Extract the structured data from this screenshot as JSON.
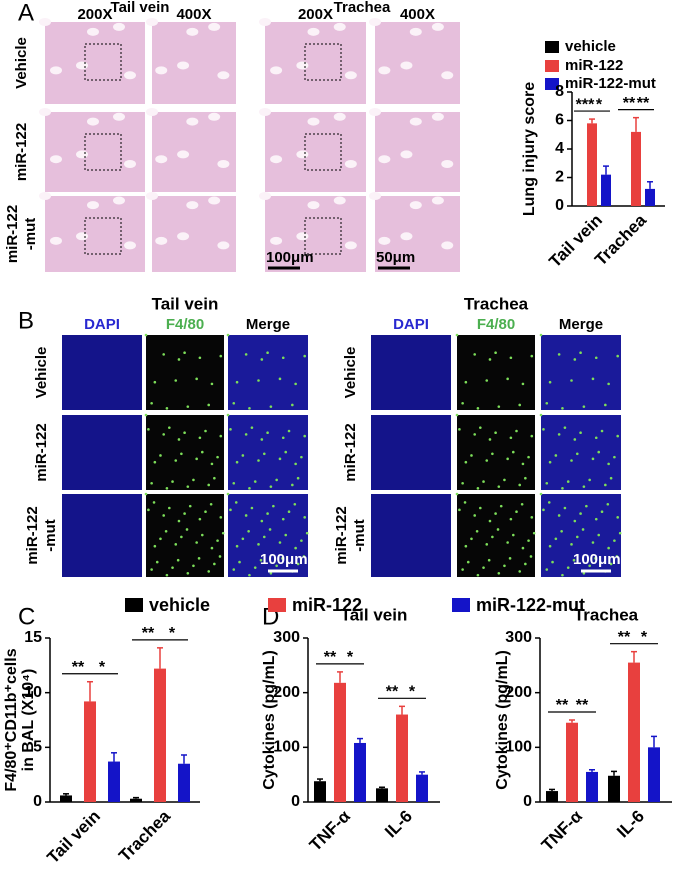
{
  "panel_labels": [
    "A",
    "B",
    "C",
    "D"
  ],
  "histology": {
    "groups": [
      "Tail vein",
      "Trachea"
    ],
    "magnifications": [
      "200X",
      "400X",
      "200X",
      "400X"
    ],
    "rows": [
      [
        "Vehicle"
      ],
      [
        "miR-122"
      ],
      [
        "miR-122",
        "-mut"
      ]
    ],
    "scale_bars": [
      "100μm",
      "50μm"
    ]
  },
  "fluorescence": {
    "groups": [
      "Tail vein",
      "Trachea"
    ],
    "channels": [
      "DAPI",
      "F4/80",
      "Merge",
      "DAPI",
      "F4/80",
      "Merge"
    ],
    "rows": [
      [
        [
          "Vehicle"
        ],
        [
          "miR-122"
        ],
        [
          "miR-122",
          "-mut"
        ]
      ],
      [
        [
          "Vehicle"
        ],
        [
          "miR-122"
        ],
        [
          "miR-122",
          "-mut"
        ]
      ]
    ],
    "scale_bars": [
      "100μm",
      "100μm"
    ]
  },
  "chart_data": [
    {
      "type": "bar",
      "y_label": [
        "Lung injury score"
      ],
      "categories": [
        "Tail vein",
        "Trachea"
      ],
      "series": [
        {
          "name": "vehicle",
          "color": "#000000",
          "values": [
            0,
            0
          ],
          "errors": [
            0,
            0
          ]
        },
        {
          "name": "miR-122",
          "color": "#e8403e",
          "values": [
            5.8,
            5.2
          ],
          "errors": [
            0.3,
            1.0
          ]
        },
        {
          "name": "miR-122-mut",
          "color": "#1414c8",
          "values": [
            2.2,
            1.2
          ],
          "errors": [
            0.6,
            0.5
          ]
        }
      ],
      "significance": [
        [
          "***",
          "*"
        ],
        [
          "**",
          "**"
        ]
      ],
      "ylim": [
        0,
        8
      ],
      "yticks": [
        0,
        2,
        4,
        6,
        8
      ]
    },
    {
      "type": "bar",
      "y_label": [
        "F4/80⁺CD11b⁺cells",
        "in BAL (X10⁴)"
      ],
      "categories": [
        "Tail vein",
        "Trachea"
      ],
      "series": [
        {
          "name": "vehicle",
          "color": "#000000",
          "values": [
            0.6,
            0.3
          ],
          "errors": [
            0.15,
            0.1
          ]
        },
        {
          "name": "miR-122",
          "color": "#e8403e",
          "values": [
            9.2,
            12.2
          ],
          "errors": [
            1.8,
            1.9
          ]
        },
        {
          "name": "miR-122-mut",
          "color": "#1414c8",
          "values": [
            3.7,
            3.5
          ],
          "errors": [
            0.8,
            0.8
          ]
        }
      ],
      "significance": [
        [
          "**",
          "*"
        ],
        [
          "**",
          "*"
        ]
      ],
      "ylim": [
        0,
        15
      ],
      "yticks": [
        0,
        5,
        10,
        15
      ]
    },
    {
      "type": "bar",
      "title": "Tail vein",
      "y_label": [
        "Cytokines (pg/mL)"
      ],
      "categories": [
        "TNF-α",
        "IL-6"
      ],
      "series": [
        {
          "color": "#000000",
          "values": [
            38,
            25
          ],
          "errors": [
            4,
            2
          ]
        },
        {
          "color": "#e8403e",
          "values": [
            218,
            160
          ],
          "errors": [
            20,
            15
          ]
        },
        {
          "color": "#1414c8",
          "values": [
            108,
            50
          ],
          "errors": [
            8,
            5
          ]
        }
      ],
      "significance": [
        [
          "**",
          "*"
        ],
        [
          "**",
          "*"
        ]
      ],
      "ylim": [
        0,
        300
      ],
      "yticks": [
        0,
        100,
        200,
        300
      ]
    },
    {
      "type": "bar",
      "title": "Trachea",
      "y_label": [
        "Cytokines (pg/mL)"
      ],
      "categories": [
        "TNF-α",
        "IL-6"
      ],
      "series": [
        {
          "color": "#000000",
          "values": [
            20,
            48
          ],
          "errors": [
            3,
            8
          ]
        },
        {
          "color": "#e8403e",
          "values": [
            145,
            255
          ],
          "errors": [
            5,
            20
          ]
        },
        {
          "color": "#1414c8",
          "values": [
            55,
            100
          ],
          "errors": [
            4,
            20
          ]
        }
      ],
      "significance": [
        [
          "**",
          "**"
        ],
        [
          "**",
          "*"
        ]
      ],
      "ylim": [
        0,
        300
      ],
      "yticks": [
        0,
        100,
        200,
        300
      ]
    }
  ]
}
